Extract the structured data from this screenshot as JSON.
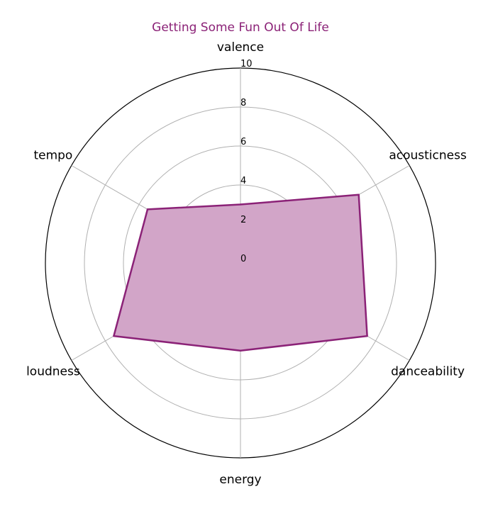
{
  "chart_data": {
    "type": "radar",
    "title": "Getting Some Fun Out Of Life",
    "axes": [
      "valence",
      "acousticness",
      "danceability",
      "energy",
      "loudness",
      "tempo"
    ],
    "values": [
      3.0,
      7.0,
      7.5,
      4.5,
      7.5,
      5.5
    ],
    "rlim": [
      0,
      10
    ],
    "rticks": [
      0,
      2,
      4,
      6,
      8,
      10
    ],
    "grid": true,
    "colors": {
      "title": "#8b2277",
      "line": "#8b2277",
      "fill": "#d2a5c8",
      "grid": "#b0b0b0",
      "outer_circle": "#000000"
    }
  }
}
